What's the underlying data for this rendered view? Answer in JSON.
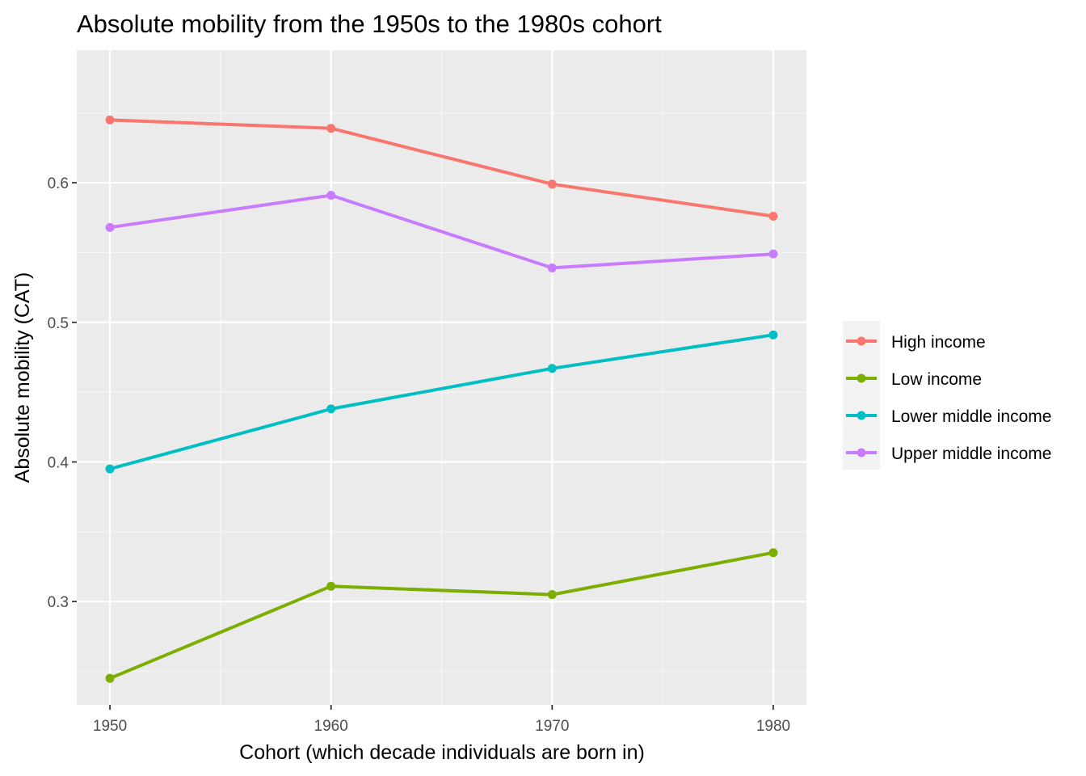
{
  "chart_data": {
    "type": "line",
    "title": "Absolute mobility from the 1950s to the 1980s cohort",
    "xlabel": "Cohort (which decade individuals are born in)",
    "ylabel": "Absolute mobility (CAT)",
    "x": [
      1950,
      1960,
      1970,
      1980
    ],
    "x_ticks": [
      "1950",
      "1960",
      "1970",
      "1980"
    ],
    "xlim": [
      1948.5,
      1981.5
    ],
    "y_ticks": [
      "0.3",
      "0.4",
      "0.5",
      "0.6"
    ],
    "ylim": [
      0.226,
      0.695
    ],
    "grid": true,
    "legend_position": "right",
    "series": [
      {
        "name": "High income",
        "color": "#F8766D",
        "values": [
          0.645,
          0.639,
          0.599,
          0.576
        ]
      },
      {
        "name": "Low income",
        "color": "#7CAE00",
        "values": [
          0.245,
          0.311,
          0.305,
          0.335
        ]
      },
      {
        "name": "Lower middle income",
        "color": "#00BFC4",
        "values": [
          0.395,
          0.438,
          0.467,
          0.491
        ]
      },
      {
        "name": "Upper middle income",
        "color": "#C77CFF",
        "values": [
          0.568,
          0.591,
          0.539,
          0.549
        ]
      }
    ]
  }
}
